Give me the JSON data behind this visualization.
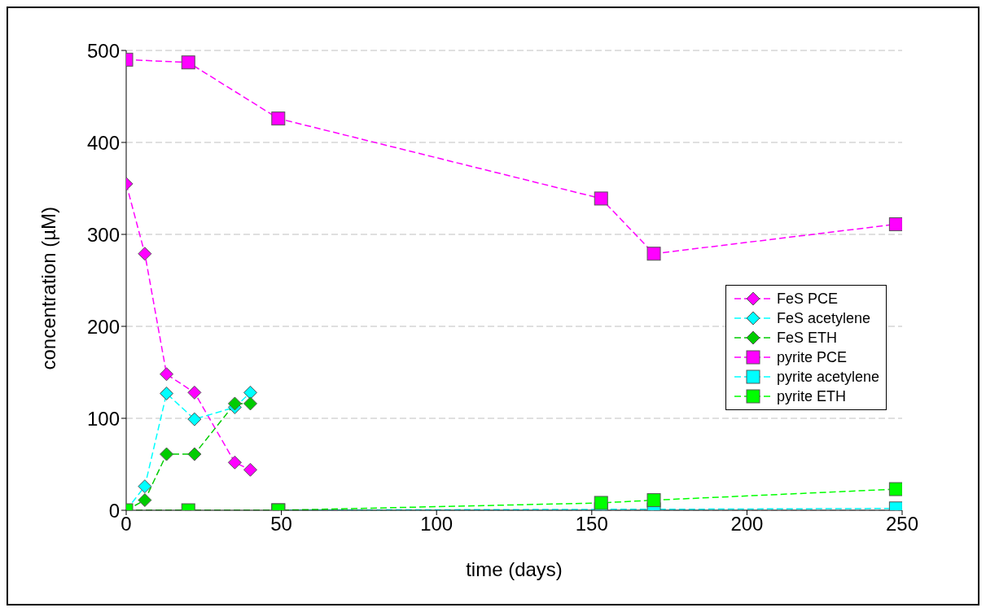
{
  "chart_data": {
    "type": "line",
    "xlabel": "time (days)",
    "ylabel": "concentration (µM)",
    "xlim": [
      0,
      250
    ],
    "xticks": [
      0,
      50,
      100,
      150,
      200,
      250
    ],
    "ylim": [
      0,
      500
    ],
    "yticks": [
      0,
      100,
      200,
      300,
      400,
      500
    ],
    "grid": "y",
    "legend": "right",
    "line_style": "dashed",
    "series": [
      {
        "name": "FeS PCE",
        "color": "#ff00ff",
        "marker": "diamond",
        "x": [
          0,
          6,
          13,
          22,
          35,
          40
        ],
        "values": [
          355,
          279,
          148,
          128,
          52,
          44
        ]
      },
      {
        "name": "FeS acetylene",
        "color": "#00ffff",
        "marker": "diamond",
        "x": [
          0,
          6,
          13,
          22,
          35,
          40
        ],
        "values": [
          0,
          26,
          127,
          99,
          112,
          128
        ]
      },
      {
        "name": "FeS ETH",
        "color": "#00cc00",
        "marker": "diamond",
        "x": [
          0,
          6,
          13,
          22,
          35,
          40
        ],
        "values": [
          0,
          11,
          61,
          61,
          116,
          116
        ]
      },
      {
        "name": "pyrite PCE",
        "color": "#ff00ff",
        "marker": "square",
        "x": [
          0,
          20,
          49,
          153,
          170,
          248
        ],
        "values": [
          490,
          487,
          426,
          339,
          279,
          311
        ]
      },
      {
        "name": "pyrite acetylene",
        "color": "#00ffff",
        "marker": "square",
        "x": [
          49,
          153,
          170,
          248
        ],
        "values": [
          0,
          1,
          1,
          2
        ]
      },
      {
        "name": "pyrite ETH",
        "color": "#00ff00",
        "marker": "square",
        "x": [
          0,
          20,
          49,
          153,
          170,
          248
        ],
        "values": [
          0,
          0,
          0,
          8,
          11,
          23
        ]
      }
    ]
  }
}
